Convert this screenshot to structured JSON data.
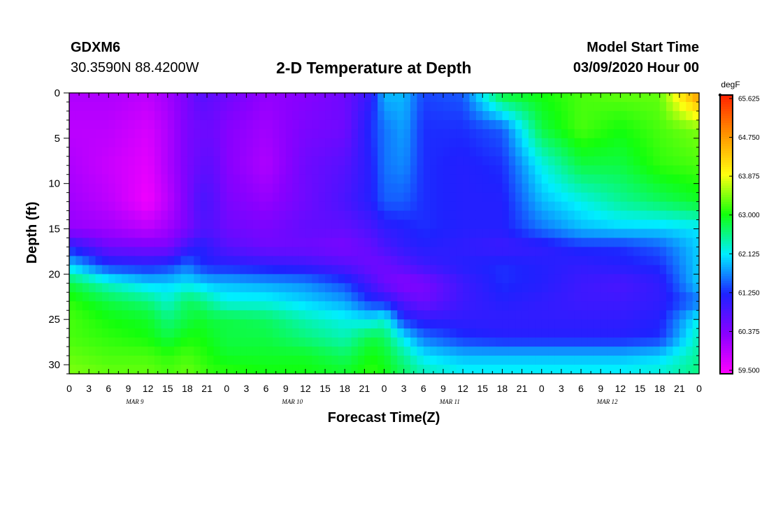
{
  "header": {
    "station_id": "GDXM6",
    "coordinates": "30.3590N 88.4200W",
    "title": "2-D Temperature at Depth",
    "start_label": "Model Start Time",
    "start_value": "03/09/2020 Hour 00"
  },
  "chart_data": {
    "type": "heatmap",
    "title": "2-D Temperature at Depth",
    "xlabel": "Forecast Time(Z)",
    "ylabel": "Depth (ft)",
    "x_hours_range": [
      0,
      96
    ],
    "x_tick_step_hours": 3,
    "x_tick_labels": [
      "0",
      "3",
      "6",
      "9",
      "12",
      "15",
      "18",
      "21",
      "0",
      "3",
      "6",
      "9",
      "12",
      "15",
      "18",
      "21",
      "0",
      "3",
      "6",
      "9",
      "12",
      "15",
      "18",
      "21",
      "0",
      "3",
      "6",
      "9",
      "12",
      "15",
      "18",
      "21",
      "0"
    ],
    "day_labels": [
      "MAR 9",
      "MAR 10",
      "MAR 11",
      "MAR 12"
    ],
    "ylim": [
      0,
      31
    ],
    "y_ticks": [
      0,
      5,
      10,
      15,
      20,
      25,
      30
    ],
    "y_axis_inverted": true,
    "colorbar": {
      "unit": "degF",
      "range": [
        59.5,
        65.625
      ],
      "tick_labels": [
        "65.625",
        "64.750",
        "63.875",
        "63.000",
        "62.125",
        "61.250",
        "60.375",
        "59.500"
      ],
      "colors": [
        "#ff00ff",
        "#8a00ff",
        "#1e22ff",
        "#00eeff",
        "#12ff0c",
        "#ffff10",
        "#ff9400",
        "#ff2200"
      ]
    },
    "y_depths_ft": [
      0,
      4,
      8,
      12,
      15,
      17,
      19,
      21,
      23,
      25,
      27,
      29,
      31
    ],
    "x_hours": [
      0,
      6,
      12,
      15,
      18,
      20,
      22,
      24,
      30,
      36,
      42,
      46,
      48,
      51,
      54,
      60,
      66,
      72,
      78,
      84,
      90,
      96
    ],
    "values_degF": [
      [
        60.1,
        60.1,
        60.0,
        60.2,
        60.5,
        60.8,
        60.7,
        60.6,
        60.3,
        60.4,
        60.6,
        61.1,
        61.9,
        61.9,
        61.4,
        61.5,
        62.9,
        63.0,
        63.2,
        63.3,
        63.3,
        64.8
      ],
      [
        60.0,
        60.0,
        59.8,
        60.1,
        60.5,
        60.6,
        60.6,
        60.4,
        60.2,
        60.5,
        60.6,
        61.3,
        61.6,
        61.8,
        61.3,
        61.3,
        61.5,
        62.8,
        63.2,
        63.0,
        63.2,
        63.4
      ],
      [
        60.1,
        59.9,
        59.7,
        60.1,
        60.5,
        60.7,
        60.7,
        60.4,
        60.1,
        60.6,
        60.8,
        61.2,
        61.6,
        61.7,
        61.3,
        61.2,
        61.3,
        62.2,
        62.8,
        62.8,
        63.1,
        63.2
      ],
      [
        60.2,
        60.0,
        59.6,
        60.0,
        60.5,
        60.9,
        60.8,
        60.5,
        60.3,
        60.6,
        60.9,
        61.2,
        61.5,
        61.5,
        61.3,
        61.2,
        61.2,
        61.9,
        62.2,
        62.5,
        62.7,
        62.9
      ],
      [
        60.3,
        60.2,
        60.0,
        60.2,
        60.5,
        60.8,
        60.8,
        60.6,
        60.5,
        60.7,
        60.7,
        60.9,
        61.1,
        61.2,
        61.3,
        61.2,
        61.2,
        61.6,
        61.9,
        62.0,
        62.0,
        62.1
      ],
      [
        61.2,
        60.6,
        60.5,
        60.5,
        61.0,
        61.2,
        61.0,
        60.8,
        60.6,
        60.6,
        60.5,
        60.7,
        60.9,
        61.1,
        61.2,
        61.1,
        61.0,
        61.1,
        61.3,
        61.3,
        61.5,
        62.0
      ],
      [
        62.0,
        61.3,
        61.2,
        61.3,
        61.6,
        61.3,
        61.2,
        61.2,
        61.1,
        61.0,
        60.8,
        60.6,
        60.6,
        60.8,
        61.0,
        61.2,
        61.3,
        61.2,
        61.1,
        61.2,
        61.3,
        62.0
      ],
      [
        62.8,
        62.3,
        62.0,
        62.0,
        62.1,
        62.0,
        61.9,
        61.9,
        61.8,
        61.7,
        61.4,
        60.9,
        60.6,
        60.4,
        60.5,
        61.0,
        61.3,
        61.2,
        61.0,
        60.9,
        61.1,
        62.0
      ],
      [
        63.1,
        62.8,
        62.6,
        62.3,
        62.7,
        62.6,
        62.4,
        62.2,
        62.2,
        62.0,
        61.8,
        61.3,
        61.2,
        60.8,
        60.6,
        61.0,
        61.2,
        61.1,
        61.0,
        61.0,
        61.1,
        61.6
      ],
      [
        63.2,
        63.0,
        62.9,
        62.6,
        62.8,
        62.9,
        62.8,
        62.8,
        62.7,
        62.4,
        62.2,
        62.1,
        62.3,
        61.3,
        61.1,
        61.1,
        61.1,
        61.1,
        61.1,
        61.1,
        61.2,
        62.2
      ],
      [
        63.2,
        63.1,
        63.0,
        62.8,
        63.0,
        63.0,
        62.9,
        62.8,
        62.8,
        62.6,
        62.4,
        62.8,
        62.7,
        62.1,
        61.6,
        61.3,
        61.2,
        61.2,
        61.2,
        61.2,
        61.3,
        62.4
      ],
      [
        63.3,
        63.2,
        63.2,
        63.1,
        63.2,
        63.1,
        63.0,
        62.9,
        62.9,
        62.9,
        62.7,
        63.0,
        62.9,
        62.5,
        62.1,
        61.9,
        61.9,
        61.9,
        61.9,
        61.9,
        62.0,
        62.5
      ],
      [
        63.4,
        63.3,
        63.3,
        63.2,
        63.3,
        63.2,
        63.1,
        63.1,
        63.0,
        63.0,
        62.9,
        63.1,
        63.0,
        62.7,
        62.4,
        62.2,
        62.2,
        62.2,
        62.2,
        62.2,
        62.3,
        62.6
      ]
    ]
  }
}
